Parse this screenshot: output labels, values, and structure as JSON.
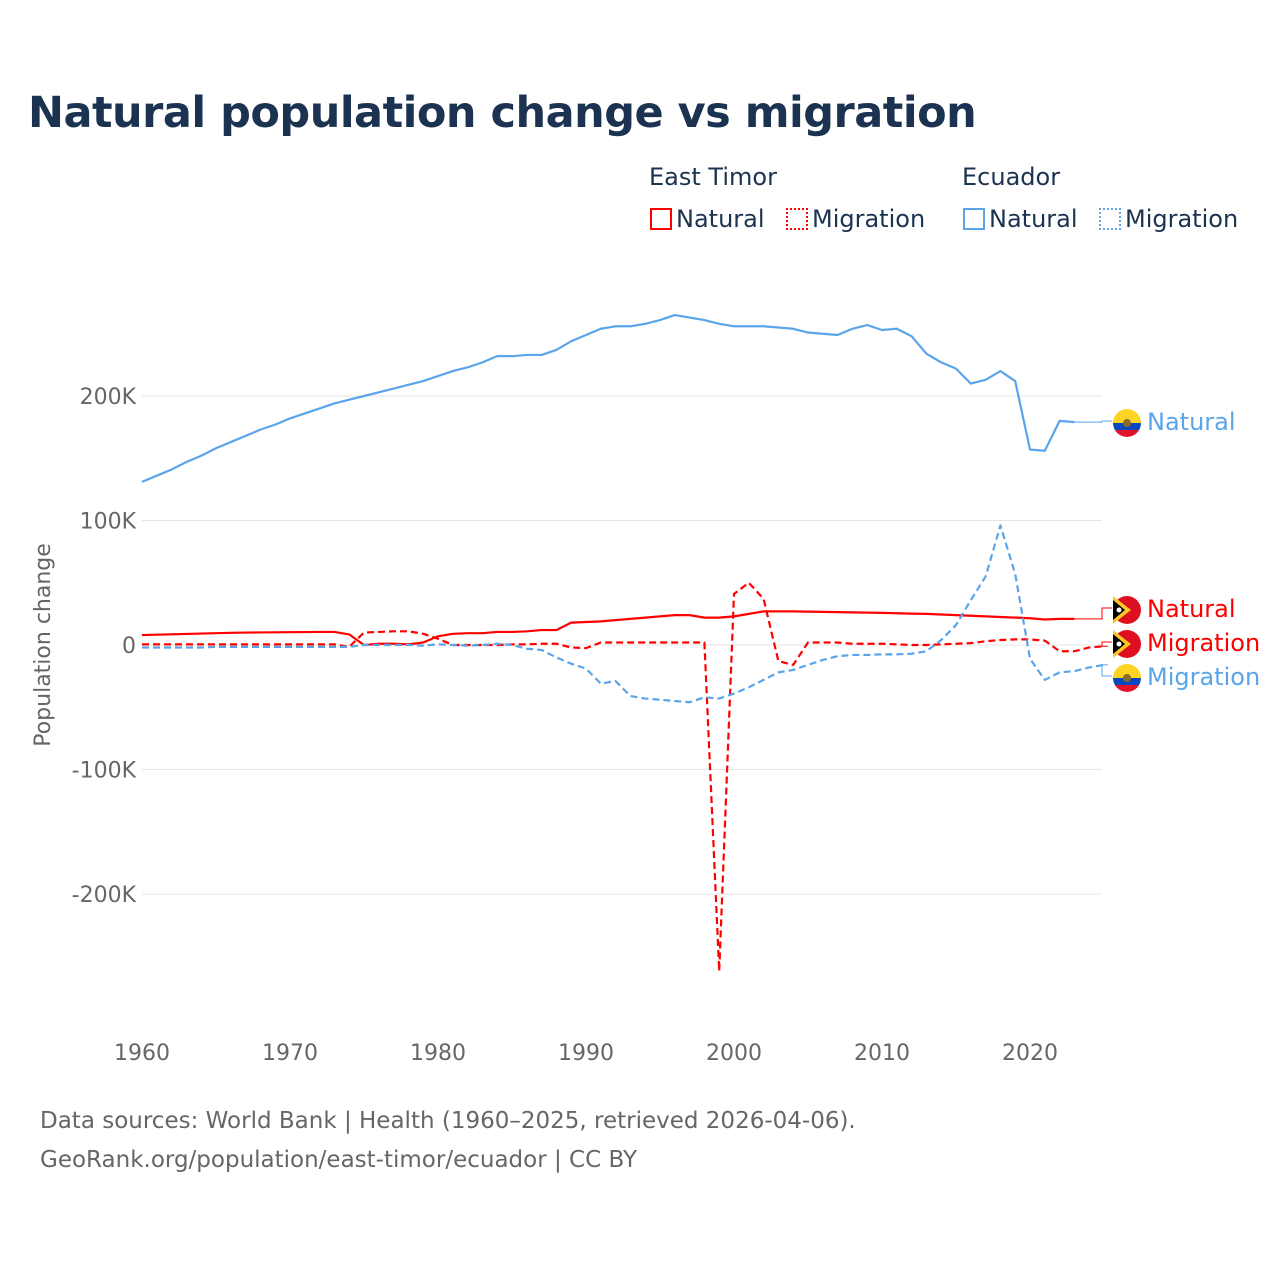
{
  "title": "Natural population change vs migration",
  "legend": {
    "groups": [
      {
        "name": "East Timor",
        "items": [
          {
            "label": "Natural",
            "color": "#ff0000",
            "style": "solid"
          },
          {
            "label": "Migration",
            "color": "#ff0000",
            "style": "dotted"
          }
        ]
      },
      {
        "name": "Ecuador",
        "items": [
          {
            "label": "Natural",
            "color": "#5aa5ea",
            "style": "solid"
          },
          {
            "label": "Migration",
            "color": "#5aa5ea",
            "style": "dotted"
          }
        ]
      }
    ]
  },
  "footer": {
    "line1": "Data sources: World Bank | Health (1960–2025, retrieved 2026-04-06).",
    "line2": "GeoRank.org/population/east-timor/ecuador | CC BY"
  },
  "chart_data": {
    "type": "line",
    "title": "Natural population change vs migration",
    "xlabel": "",
    "ylabel": "Population change",
    "xlim": [
      1960,
      2025
    ],
    "ylim": [
      -290000,
      300000
    ],
    "xticks": [
      1960,
      1970,
      1980,
      1990,
      2000,
      2010,
      2020
    ],
    "xtick_labels": [
      "1960",
      "1970",
      "1980",
      "1990",
      "2000",
      "2010",
      "2020"
    ],
    "yticks": [
      -200000,
      -100000,
      0,
      100000,
      200000
    ],
    "ytick_labels": [
      "-200K",
      "-100K",
      "0",
      "100K",
      "200K"
    ],
    "grid": true,
    "series": [
      {
        "name": "Ecuador Natural",
        "end_label": "Natural",
        "country": "Ecuador",
        "color": "#5aa5ea",
        "dash": false,
        "x_start": 1960,
        "values": [
          131,
          136,
          141,
          147,
          152,
          158,
          163,
          168,
          173,
          177,
          182,
          186,
          190,
          194,
          197,
          200,
          203,
          206,
          209,
          212,
          216,
          220,
          223,
          227,
          232,
          232,
          233,
          233,
          237,
          244,
          249,
          254,
          256,
          256,
          258,
          261,
          265,
          263,
          261,
          258,
          256,
          256,
          256,
          255,
          254,
          251,
          250,
          249,
          254,
          257,
          253,
          254,
          248,
          234,
          227,
          222,
          210,
          213,
          220,
          212,
          157,
          156,
          180,
          179
        ]
      },
      {
        "name": "East Timor Natural",
        "end_label": "Natural",
        "country": "East Timor",
        "color": "#ff0000",
        "dash": false,
        "x_start": 1960,
        "values": [
          8,
          8.3,
          8.6,
          8.9,
          9.2,
          9.5,
          9.8,
          10,
          10.1,
          10.2,
          10.3,
          10.4,
          10.5,
          10.5,
          8.5,
          0,
          1,
          1,
          0.5,
          2,
          7,
          9,
          9.5,
          9.5,
          10.5,
          10.5,
          11,
          12,
          12,
          18,
          18.5,
          19,
          20,
          21,
          22,
          23,
          24,
          24,
          22,
          22,
          23,
          25,
          27,
          27,
          27,
          26.8,
          26.6,
          26.4,
          26.2,
          26,
          25.8,
          25.5,
          25.2,
          25,
          24.5,
          24,
          23.5,
          23,
          22.5,
          22,
          21.5,
          20.5,
          21,
          21
        ]
      },
      {
        "name": "East Timor Migration",
        "end_label": "Migration",
        "country": "East Timor",
        "color": "#ff0000",
        "dash": true,
        "x_start": 1960,
        "values": [
          0.5,
          0.5,
          0.5,
          0.5,
          0.5,
          0.5,
          0.5,
          0.5,
          0.5,
          0.5,
          0.5,
          0.5,
          0.5,
          0.5,
          -1.5,
          10,
          10.5,
          11,
          11,
          9,
          5,
          0,
          0,
          0,
          0,
          0.5,
          0.5,
          1,
          1,
          -2,
          -2.5,
          2,
          2,
          2,
          2,
          2,
          2,
          2,
          2,
          -262,
          41,
          50,
          37,
          -13,
          -16,
          2,
          2,
          2,
          1,
          1,
          1,
          0.5,
          0,
          0,
          0.5,
          1,
          1.5,
          3,
          4,
          4.5,
          4.5,
          3.5,
          -5,
          -5,
          -2,
          -1
        ]
      },
      {
        "name": "Ecuador Migration",
        "end_label": "Migration",
        "country": "Ecuador",
        "color": "#5aa5ea",
        "dash": true,
        "x_start": 1960,
        "values": [
          -2,
          -2,
          -2,
          -2,
          -2,
          -1.5,
          -1.5,
          -1.5,
          -1.5,
          -1.5,
          -1.5,
          -1.5,
          -1.5,
          -1.5,
          -1.5,
          0,
          0,
          0,
          0,
          -0.5,
          0.5,
          0,
          -0.5,
          0,
          1,
          0,
          -3,
          -4,
          -10,
          -15,
          -19,
          -31,
          -29,
          -41,
          -43,
          -44,
          -45,
          -46,
          -42,
          -43,
          -39,
          -34,
          -28,
          -22,
          -20,
          -16,
          -12,
          -9,
          -8,
          -8,
          -7.5,
          -7.5,
          -7,
          -5,
          4,
          16,
          36,
          55,
          96,
          57,
          -11,
          -28,
          -22,
          -21,
          -18,
          -16
        ]
      }
    ],
    "value_unit": "thousands"
  }
}
